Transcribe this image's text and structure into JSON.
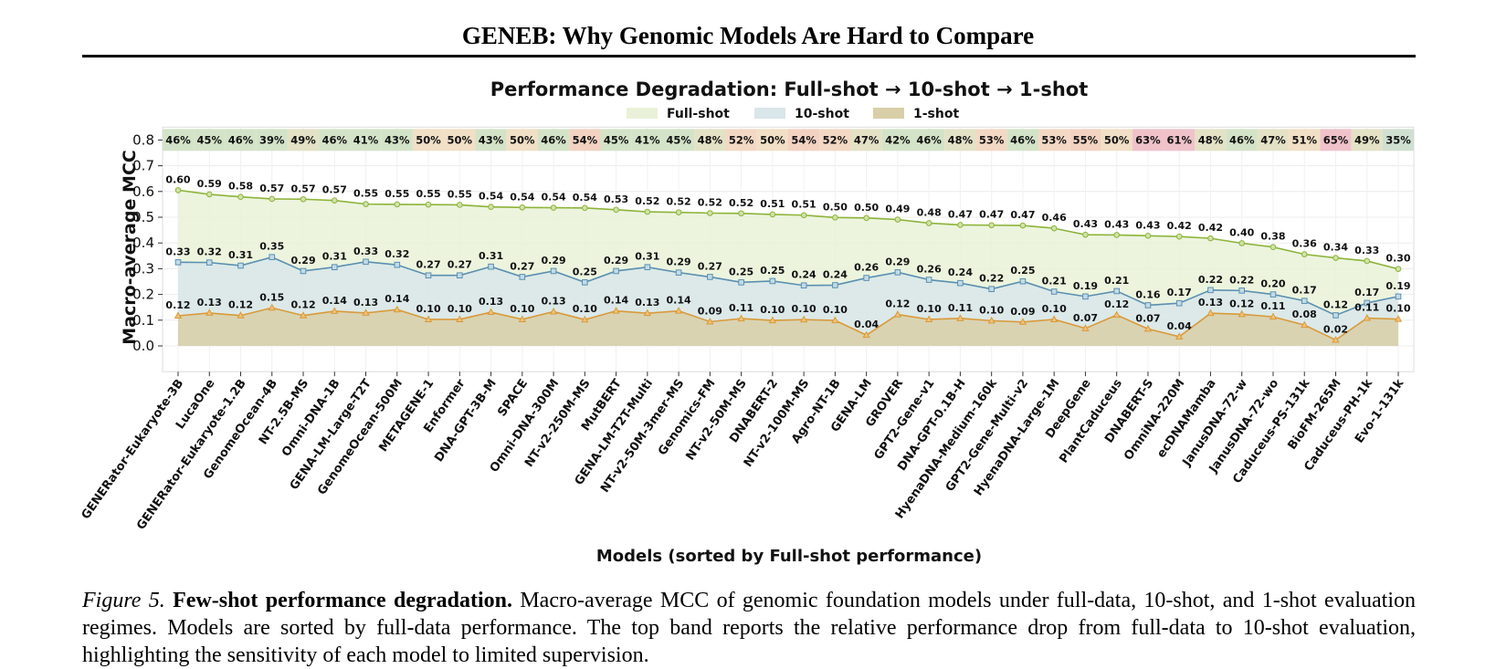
{
  "page": {
    "title": "GENEB: Why Genomic Models Are Hard to Compare",
    "caption_label": "Figure 5.",
    "caption_bold": "Few-shot performance degradation.",
    "caption_text": "Macro-average MCC of genomic foundation models under full-data, 10-shot, and 1-shot evaluation regimes. Models are sorted by full-data performance. The top band reports the relative performance drop from full-data to 10-shot evaluation, highlighting the sensitivity of each model to limited supervision."
  },
  "chart_data": {
    "type": "line",
    "title": "Performance Degradation: Full-shot → 10-shot → 1-shot",
    "xlabel": "Models (sorted by Full-shot performance)",
    "ylabel": "Macro-average MCC",
    "ylim": [
      -0.1,
      0.85
    ],
    "yticks": [
      0.0,
      0.1,
      0.2,
      0.3,
      0.4,
      0.5,
      0.6,
      0.7,
      0.8
    ],
    "grid": true,
    "legend_position": "top-center",
    "categories": [
      "GENERator-Eukaryote-3B",
      "LucaOne",
      "GENERator-Eukaryote-1.2B",
      "GenomeOcean-4B",
      "NT-2.5B-MS",
      "Omni-DNA-1B",
      "GENA-LM-Large-T2T",
      "GenomeOcean-500M",
      "METAGENE-1",
      "Enformer",
      "DNA-GPT-3B-M",
      "SPACE",
      "Omni-DNA-300M",
      "NT-v2-250M-MS",
      "MutBERT",
      "GENA-LM-T2T-Multi",
      "NT-v2-50M-3mer-MS",
      "Genomics-FM",
      "NT-v2-50M-MS",
      "DNABERT-2",
      "NT-v2-100M-MS",
      "Agro-NT-1B",
      "GENA-LM",
      "GROVER",
      "GPT2-Gene-v1",
      "DNA-GPT-0.1B-H",
      "HyenaDNA-Medium-160k",
      "GPT2-Gene-Multi-v2",
      "HyenaDNA-Large-1M",
      "DeepGene",
      "PlantCaduceus",
      "DNABERT-S",
      "OmniNA-220M",
      "ecDNAMamba",
      "JanusDNA-72-w",
      "JanusDNA-72-wo",
      "Caduceus-PS-131k",
      "BioFM-265M",
      "Caduceus-PH-1k",
      "Evo-1-131k"
    ],
    "series": [
      {
        "name": "Full-shot",
        "color": "#8db33a",
        "fill": "#e9f2d8",
        "marker": "circle",
        "values": [
          0.605,
          0.589,
          0.579,
          0.571,
          0.57,
          0.565,
          0.551,
          0.55,
          0.549,
          0.548,
          0.54,
          0.538,
          0.537,
          0.536,
          0.529,
          0.521,
          0.519,
          0.516,
          0.515,
          0.511,
          0.508,
          0.499,
          0.497,
          0.491,
          0.477,
          0.47,
          0.469,
          0.468,
          0.457,
          0.432,
          0.431,
          0.428,
          0.425,
          0.418,
          0.399,
          0.384,
          0.356,
          0.342,
          0.33,
          0.299
        ],
        "labels": [
          "0.60",
          "0.59",
          "0.58",
          "0.57",
          "0.57",
          "0.57",
          "0.55",
          "0.55",
          "0.55",
          "0.55",
          "0.54",
          "0.54",
          "0.54",
          "0.54",
          "0.53",
          "0.52",
          "0.52",
          "0.52",
          "0.52",
          "0.51",
          "0.51",
          "0.50",
          "0.50",
          "0.49",
          "0.48",
          "0.47",
          "0.47",
          "0.47",
          "0.46",
          "0.43",
          "0.43",
          "0.43",
          "0.42",
          "0.42",
          "0.40",
          "0.38",
          "0.36",
          "0.34",
          "0.33",
          "0.30"
        ]
      },
      {
        "name": "10-shot",
        "color": "#5a8fb0",
        "fill": "#d9e6ea",
        "marker": "square",
        "values": [
          0.325,
          0.324,
          0.312,
          0.345,
          0.291,
          0.306,
          0.327,
          0.315,
          0.274,
          0.274,
          0.308,
          0.268,
          0.291,
          0.247,
          0.291,
          0.306,
          0.285,
          0.268,
          0.247,
          0.252,
          0.235,
          0.236,
          0.264,
          0.286,
          0.257,
          0.244,
          0.221,
          0.251,
          0.211,
          0.192,
          0.213,
          0.158,
          0.166,
          0.217,
          0.215,
          0.2,
          0.175,
          0.119,
          0.167,
          0.192
        ],
        "labels": [
          "0.33",
          "0.32",
          "0.31",
          "0.35",
          "0.29",
          "0.31",
          "0.33",
          "0.32",
          "0.27",
          "0.27",
          "0.31",
          "0.27",
          "0.29",
          "0.25",
          "0.29",
          "0.31",
          "0.29",
          "0.27",
          "0.25",
          "0.25",
          "0.24",
          "0.24",
          "0.26",
          "0.29",
          "0.26",
          "0.24",
          "0.22",
          "0.25",
          "0.21",
          "0.19",
          "0.21",
          "0.16",
          "0.17",
          "0.22",
          "0.22",
          "0.20",
          "0.17",
          "0.12",
          "0.17",
          "0.19"
        ]
      },
      {
        "name": "1-shot",
        "color": "#d99a3a",
        "fill": "#d8cfa8",
        "marker": "triangle",
        "values": [
          0.117,
          0.128,
          0.118,
          0.148,
          0.118,
          0.135,
          0.128,
          0.141,
          0.103,
          0.103,
          0.131,
          0.103,
          0.133,
          0.102,
          0.136,
          0.127,
          0.136,
          0.094,
          0.106,
          0.099,
          0.102,
          0.099,
          0.042,
          0.122,
          0.103,
          0.107,
          0.098,
          0.093,
          0.103,
          0.068,
          0.12,
          0.066,
          0.036,
          0.127,
          0.123,
          0.113,
          0.081,
          0.023,
          0.108,
          0.104
        ],
        "labels": [
          "0.12",
          "0.13",
          "0.12",
          "0.15",
          "0.12",
          "0.14",
          "0.13",
          "0.14",
          "0.10",
          "0.10",
          "0.13",
          "0.10",
          "0.13",
          "0.10",
          "0.14",
          "0.13",
          "0.14",
          "0.09",
          "0.11",
          "0.10",
          "0.10",
          "0.10",
          "0.04",
          "0.12",
          "0.10",
          "0.11",
          "0.10",
          "0.09",
          "0.10",
          "0.07",
          "0.12",
          "0.07",
          "0.04",
          "0.13",
          "0.12",
          "0.11",
          "0.08",
          "0.02",
          "0.11",
          "0.10"
        ]
      }
    ],
    "drop_band": {
      "labels": [
        "46%",
        "45%",
        "46%",
        "39%",
        "49%",
        "46%",
        "41%",
        "43%",
        "50%",
        "50%",
        "43%",
        "50%",
        "46%",
        "54%",
        "45%",
        "41%",
        "45%",
        "48%",
        "52%",
        "50%",
        "54%",
        "52%",
        "47%",
        "42%",
        "46%",
        "48%",
        "53%",
        "46%",
        "53%",
        "55%",
        "50%",
        "63%",
        "61%",
        "48%",
        "46%",
        "47%",
        "51%",
        "65%",
        "49%",
        "35%"
      ],
      "colors": [
        "#d3e3c8",
        "#d3e3c8",
        "#d3e3c8",
        "#d3e3c8",
        "#e3e2c6",
        "#d3e3c8",
        "#d3e3c8",
        "#d3e3c8",
        "#f1dfc6",
        "#f1dfc6",
        "#d3e3c8",
        "#f1dfc6",
        "#d3e3c8",
        "#f3d2c2",
        "#d3e3c8",
        "#d3e3c8",
        "#d3e3c8",
        "#e3e2c6",
        "#f3d8c4",
        "#f1dfc6",
        "#f3d2c2",
        "#f3d8c4",
        "#e3e2c6",
        "#d3e3c8",
        "#d3e3c8",
        "#e3e2c6",
        "#f3d8c4",
        "#d3e3c8",
        "#f3d8c4",
        "#f3d2c2",
        "#f1dfc6",
        "#efc2ca",
        "#efc2ca",
        "#e3e2c6",
        "#d3e3c8",
        "#e3e2c6",
        "#f1dfc6",
        "#efc2ca",
        "#e3e2c6",
        "#cfe0d0"
      ]
    }
  }
}
